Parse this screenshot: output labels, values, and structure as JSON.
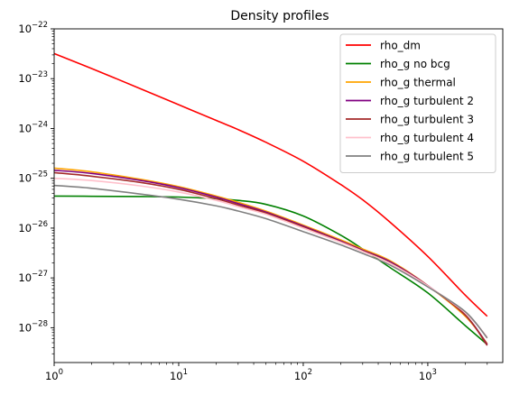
{
  "chart_data": {
    "type": "line",
    "title": "Density profiles",
    "xlabel": "",
    "ylabel": "",
    "xscale": "log",
    "yscale": "log",
    "xlim": [
      1,
      4000
    ],
    "ylim": [
      2e-29,
      1e-22
    ],
    "x_ticks": [
      {
        "value": 1,
        "base": "10",
        "exp": "0"
      },
      {
        "value": 10,
        "base": "10",
        "exp": "1"
      },
      {
        "value": 100,
        "base": "10",
        "exp": "2"
      },
      {
        "value": 1000,
        "base": "10",
        "exp": "3"
      }
    ],
    "y_ticks": [
      {
        "value": 1e-22,
        "base": "10",
        "exp": "−22"
      },
      {
        "value": 1e-23,
        "base": "10",
        "exp": "−23"
      },
      {
        "value": 1e-24,
        "base": "10",
        "exp": "−24"
      },
      {
        "value": 1e-25,
        "base": "10",
        "exp": "−25"
      },
      {
        "value": 1e-26,
        "base": "10",
        "exp": "−26"
      },
      {
        "value": 1e-27,
        "base": "10",
        "exp": "−27"
      },
      {
        "value": 1e-28,
        "base": "10",
        "exp": "−28"
      }
    ],
    "grid": false,
    "legend_position": "top-right",
    "x": [
      1,
      2,
      5,
      10,
      20,
      30,
      50,
      100,
      200,
      300,
      500,
      1000,
      2000,
      3000
    ],
    "series": [
      {
        "name": "rho_dm",
        "color": "#ff0000",
        "values": [
          3.2e-23,
          1.6e-23,
          6.2e-24,
          3e-24,
          1.45e-24,
          9.5e-25,
          5.3e-25,
          2.2e-25,
          7.5e-26,
          3.7e-26,
          1.3e-26,
          2.7e-27,
          4.5e-28,
          1.7e-28
        ]
      },
      {
        "name": "rho_g no bcg",
        "color": "#008000",
        "values": [
          4.4e-26,
          4.35e-26,
          4.3e-26,
          4.2e-26,
          3.9e-26,
          3.6e-26,
          3e-26,
          1.75e-26,
          7.2e-27,
          3.8e-27,
          1.6e-27,
          5e-28,
          1.1e-28,
          4.6e-29
        ]
      },
      {
        "name": "rho_g thermal",
        "color": "#ffa500",
        "values": [
          1.6e-25,
          1.35e-25,
          9.5e-26,
          6.8e-26,
          4.4e-26,
          3.3e-26,
          2.2e-26,
          1.15e-26,
          5.8e-27,
          3.8e-27,
          2.2e-27,
          7e-28,
          1.7e-28,
          4.8e-29
        ]
      },
      {
        "name": "rho_g turbulent 2",
        "color": "#800080",
        "values": [
          1.45e-25,
          1.25e-25,
          9e-26,
          6.5e-26,
          4.2e-26,
          3.1e-26,
          2.1e-26,
          1.1e-26,
          5.5e-27,
          3.6e-27,
          2.1e-27,
          7e-28,
          1.8e-28,
          4.6e-29
        ]
      },
      {
        "name": "rho_g turbulent 3",
        "color": "#a52a2a",
        "values": [
          1.3e-25,
          1.1e-25,
          8.2e-26,
          6e-26,
          3.9e-26,
          2.9e-26,
          2e-26,
          1.05e-26,
          5.3e-27,
          3.5e-27,
          2e-27,
          6.9e-28,
          1.8e-28,
          4.4e-29
        ]
      },
      {
        "name": "rho_g turbulent 4",
        "color": "#ffc0cb",
        "values": [
          1e-25,
          9e-26,
          7e-26,
          5.3e-26,
          3.6e-26,
          2.7e-26,
          1.9e-26,
          1e-26,
          5.2e-27,
          3.4e-27,
          1.95e-27,
          6.9e-28,
          2e-28,
          6.5e-29
        ]
      },
      {
        "name": "rho_g turbulent 5",
        "color": "#808080",
        "values": [
          7.2e-26,
          6.3e-26,
          4.8e-26,
          3.8e-26,
          2.8e-26,
          2.2e-26,
          1.55e-26,
          8.5e-27,
          4.6e-27,
          3.1e-27,
          1.8e-27,
          6.6e-28,
          2.1e-28,
          6.2e-29
        ]
      }
    ]
  }
}
